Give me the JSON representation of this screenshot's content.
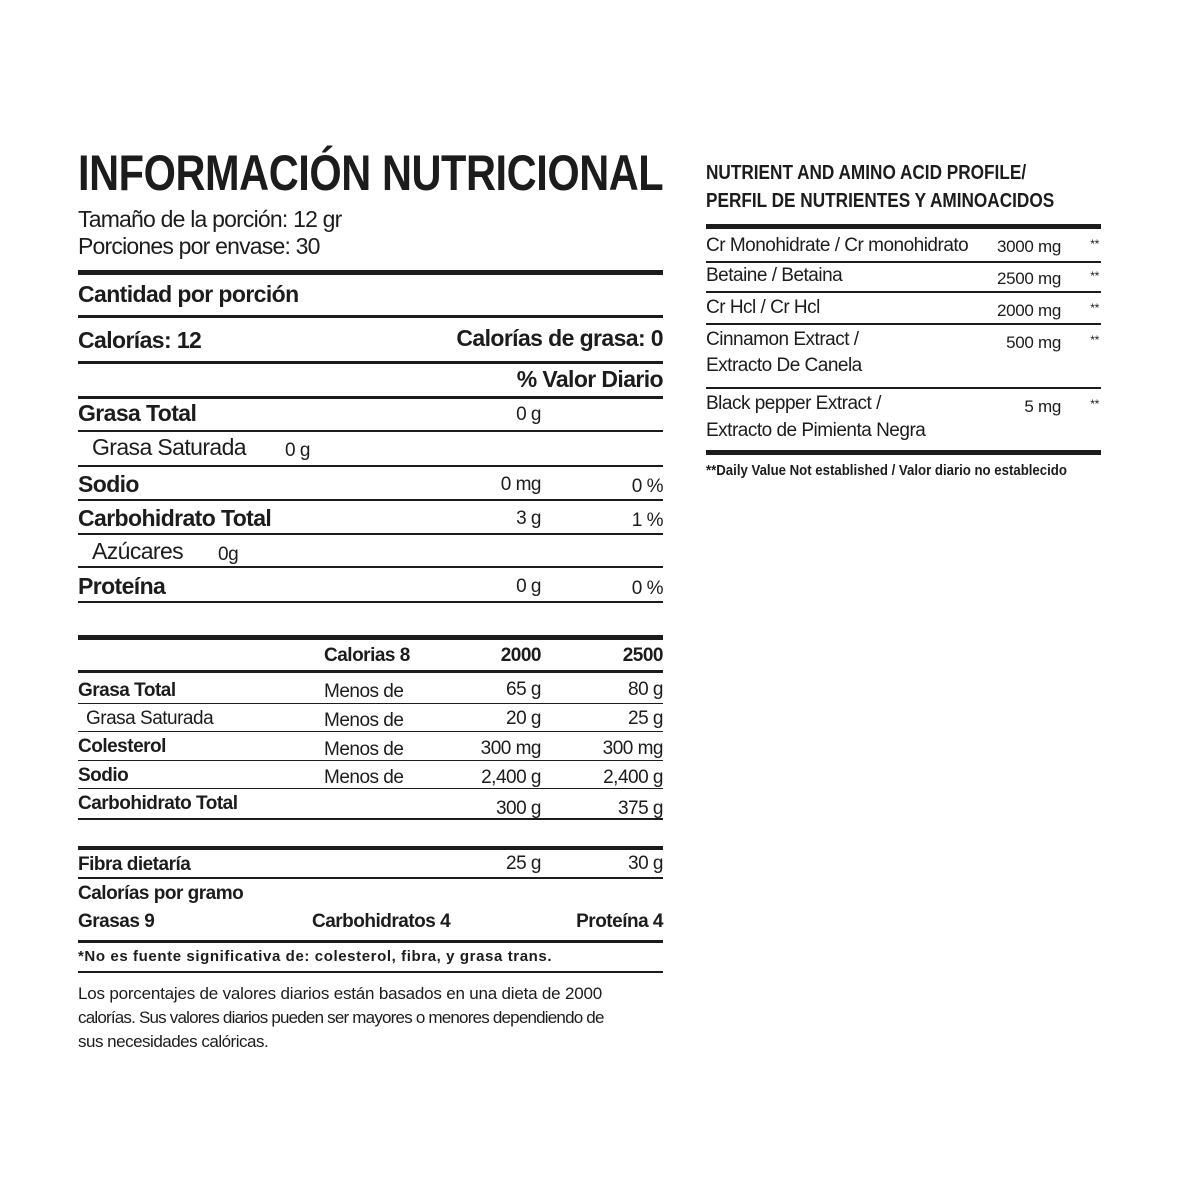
{
  "nutrition": {
    "title": "INFORMACIÓN NUTRICIONAL",
    "serving_size": "Tamaño de la porción: 12 gr",
    "servings_per_container": "Porciones por envase: 30",
    "amount_per_serving": "Cantidad por porción",
    "calories": "Calorías:  12",
    "calories_from_fat": "Calorías de grasa: 0",
    "daily_value_header": "% Valor Diario",
    "rows": [
      {
        "label": "Grasa Total",
        "amount": "0 g",
        "dv": ""
      },
      {
        "label": "Grasa Saturada",
        "amount": "0 g",
        "dv": ""
      },
      {
        "label": "Sodio",
        "amount": "0 mg",
        "dv": "0 %"
      },
      {
        "label": "Carbohidrato Total",
        "amount": "3 g",
        "dv": "1 %"
      },
      {
        "label": "Azúcares",
        "amount": "0g",
        "dv": ""
      },
      {
        "label": "Proteína",
        "amount": "0 g",
        "dv": "0 %"
      }
    ]
  },
  "reference": {
    "headers": [
      "Calorias 8",
      "2000",
      "2500"
    ],
    "rows": [
      {
        "label": "Grasa Total",
        "qualifier": "Menos de",
        "v2000": "65 g",
        "v2500": "80 g"
      },
      {
        "label": "Grasa Saturada",
        "qualifier": "Menos de",
        "v2000": "20 g",
        "v2500": "25 g"
      },
      {
        "label": "Colesterol",
        "qualifier": "Menos de",
        "v2000": "300 mg",
        "v2500": "300 mg"
      },
      {
        "label": "Sodio",
        "qualifier": "Menos de",
        "v2000": "2,400 g",
        "v2500": "2,400 g"
      },
      {
        "label": "Carbohidrato Total",
        "qualifier": "",
        "v2000": "300 g",
        "v2500": "375 g"
      }
    ],
    "fiber": {
      "label": "Fibra dietaría",
      "v2000": "25 g",
      "v2500": "30 g"
    },
    "calories_per_gram": "Calorías por gramo",
    "fats": "Grasas 9",
    "carbs": "Carbohidratos 4",
    "protein": "Proteína 4",
    "note": "*No es fuente significativa de: colesterol, fibra, y grasa trans.",
    "disclaimer": [
      "Los porcentajes de valores diarios están basados en una dieta de 2000",
      "calorías. Sus valores diarios pueden ser mayores o menores dependiendo de",
      "sus necesidades calóricas."
    ]
  },
  "profile": {
    "title_line1": "NUTRIENT AND AMINO ACID PROFILE/",
    "title_line2": "PERFIL DE NUTRIENTES Y AMINOACIDOS",
    "rows": [
      {
        "line1": "Cr Monohidrate / Cr monohidrato",
        "line2": "",
        "amount": "3000 mg",
        "dv": "**"
      },
      {
        "line1": "Betaine / Betaina",
        "line2": "",
        "amount": "2500 mg",
        "dv": "**"
      },
      {
        "line1": "Cr Hcl / Cr Hcl",
        "line2": "",
        "amount": "2000 mg",
        "dv": "**"
      },
      {
        "line1": "Cinnamon Extract /",
        "line2": "Extracto De Canela",
        "amount": "500 mg",
        "dv": "**"
      },
      {
        "line1": "Black pepper Extract /",
        "line2": "Extracto de Pimienta Negra",
        "amount": "5 mg",
        "dv": "**"
      }
    ],
    "footnote": "**Daily Value Not established / Valor diario no establecido"
  }
}
